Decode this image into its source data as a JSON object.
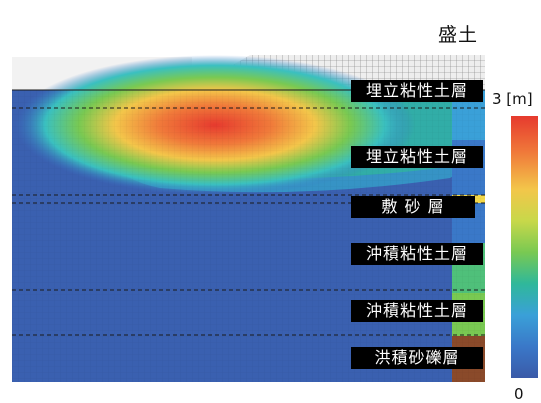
{
  "fill_label": "盛土",
  "scale": {
    "max_label": "3 [m]",
    "min_label": "0"
  },
  "layers": [
    {
      "label": "埋立粘性土層"
    },
    {
      "label": "埋立粘性土層"
    },
    {
      "label": "敷 砂 層"
    },
    {
      "label": "沖積粘性土層"
    },
    {
      "label": "沖積粘性土層"
    },
    {
      "label": "洪積砂礫層"
    }
  ],
  "colors": {
    "ground": "#3a5aa8",
    "hot": "#e63a2e",
    "mid": "#79c952",
    "gravel": "#8a4a2a",
    "fill_mesh": "#cfcfcf"
  }
}
